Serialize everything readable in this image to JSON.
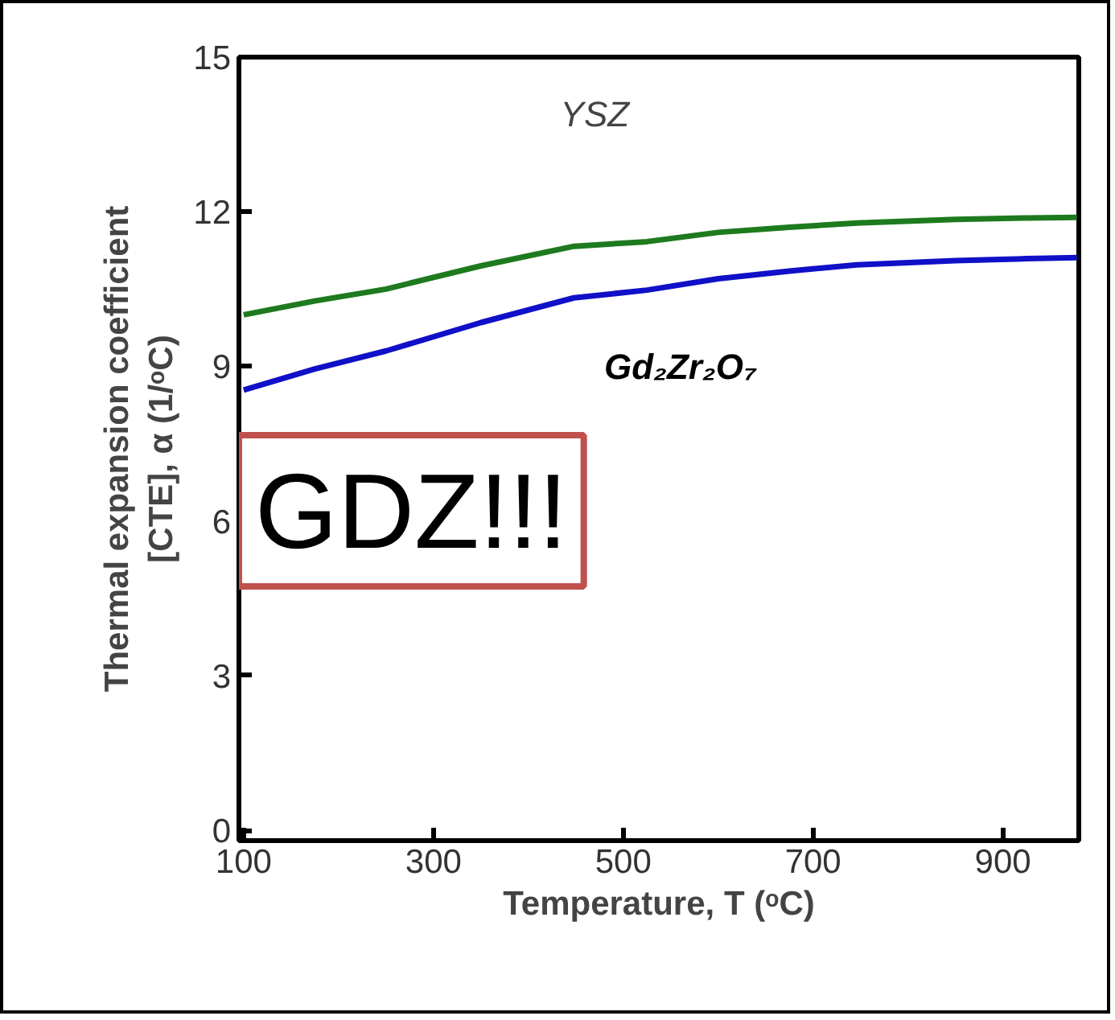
{
  "chart_data": {
    "type": "line",
    "xlabel": "Temperature, T (ᵒC)",
    "ylabel": "Thermal expansion coefficient\n[CTE], α (1/ᵒC)",
    "x": [
      100,
      175,
      250,
      350,
      448,
      525,
      600,
      675,
      746,
      850,
      925,
      978
    ],
    "series": [
      {
        "color": "#1e7a1e",
        "values": [
          10.0,
          10.27,
          10.5,
          10.95,
          11.33,
          11.42,
          11.6,
          11.7,
          11.78,
          11.85,
          11.88,
          11.89
        ]
      },
      {
        "color": "#1010c8",
        "values": [
          8.54,
          8.95,
          9.3,
          9.85,
          10.33,
          10.48,
          10.7,
          10.85,
          10.97,
          11.05,
          11.09,
          11.11
        ]
      }
    ],
    "xlim": [
      95,
      980
    ],
    "ylim": [
      -0.2,
      15
    ],
    "xticks": [
      100,
      300,
      500,
      700,
      900
    ],
    "yticks": [
      0,
      3,
      6,
      9,
      12,
      15
    ],
    "grid": false,
    "marker": "none",
    "line_style": "solid",
    "annotations": [
      "YSZ",
      "Gd₂Zr₂O₇",
      "GDZ!!!"
    ]
  }
}
